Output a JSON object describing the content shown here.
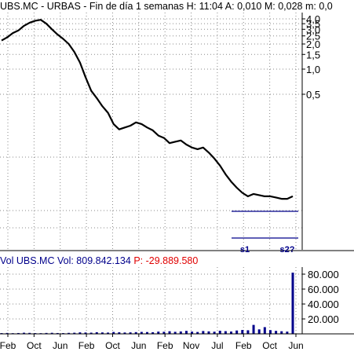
{
  "header": {
    "symbol": "UBS.MC",
    "name": "URBAS",
    "period": "Fin de día 1 semanas",
    "h_label": "H:",
    "h_value": "11:04",
    "a_label": "A:",
    "a_value": "0,010",
    "m_label": "M:",
    "m_value": "0,028",
    "mm_label": "m:",
    "mm_value": "0,0"
  },
  "volume_header": {
    "vol_label": "Vol",
    "symbol": "UBS.MC",
    "vol_text": "Vol: 809.842.134",
    "p_text": "P: -29.889.580"
  },
  "colors": {
    "price_line": "#000000",
    "volume_bars": "#00008b",
    "grid": "#8a8a8a",
    "support_lines": "#00008b",
    "annotations": "#00008b",
    "p_negative": "#e00000"
  },
  "chart_data": [
    {
      "type": "line",
      "scale": "log",
      "price_ticks": [
        "4,0",
        "3,5",
        "3,0",
        "2,5",
        "2,0",
        "1,5",
        "1,0",
        "0,5"
      ],
      "price_tick_values": [
        4.0,
        3.5,
        3.0,
        2.5,
        2.0,
        1.5,
        1.0,
        0.5
      ],
      "x_tick_labels": [
        "Feb",
        "Oct",
        "Jun",
        "Feb",
        "Oct",
        "Jun",
        "Feb",
        "Nov",
        "Jul",
        "Feb",
        "Oct",
        "Jun"
      ],
      "series": [
        {
          "values": [
            2.2,
            2.4,
            2.7,
            2.9,
            3.3,
            3.6,
            3.8,
            3.9,
            3.5,
            3.0,
            2.6,
            2.3,
            2.0,
            1.6,
            1.2,
            0.8,
            0.55,
            0.45,
            0.36,
            0.3,
            0.22,
            0.19,
            0.2,
            0.21,
            0.23,
            0.22,
            0.2,
            0.185,
            0.16,
            0.15,
            0.13,
            0.135,
            0.14,
            0.125,
            0.115,
            0.11,
            0.115,
            0.1,
            0.085,
            0.07,
            0.055,
            0.045,
            0.038,
            0.033,
            0.03,
            0.032,
            0.031,
            0.03,
            0.03,
            0.029,
            0.028,
            0.028,
            0.03
          ]
        }
      ],
      "support_labels": [
        "s1",
        "s2?"
      ]
    },
    {
      "type": "bar",
      "y_ticks": [
        "80.000",
        "60.000",
        "40.000",
        "20.000"
      ],
      "y_tick_values": [
        80000,
        60000,
        40000,
        20000
      ],
      "values": [
        1000,
        1200,
        900,
        1100,
        1500,
        1300,
        1000,
        900,
        1200,
        1400,
        1100,
        1000,
        1300,
        1500,
        2000,
        1800,
        1600,
        2200,
        1900,
        1700,
        2500,
        2100,
        1800,
        2000,
        2300,
        2600,
        2400,
        2200,
        3000,
        2800,
        3500,
        2700,
        3200,
        4000,
        3000,
        2500,
        3800,
        3300,
        2900,
        4200,
        3600,
        3100,
        4500,
        5200,
        4800,
        12000,
        6000,
        9000,
        5000,
        4000,
        3500,
        3000,
        82000
      ]
    }
  ]
}
